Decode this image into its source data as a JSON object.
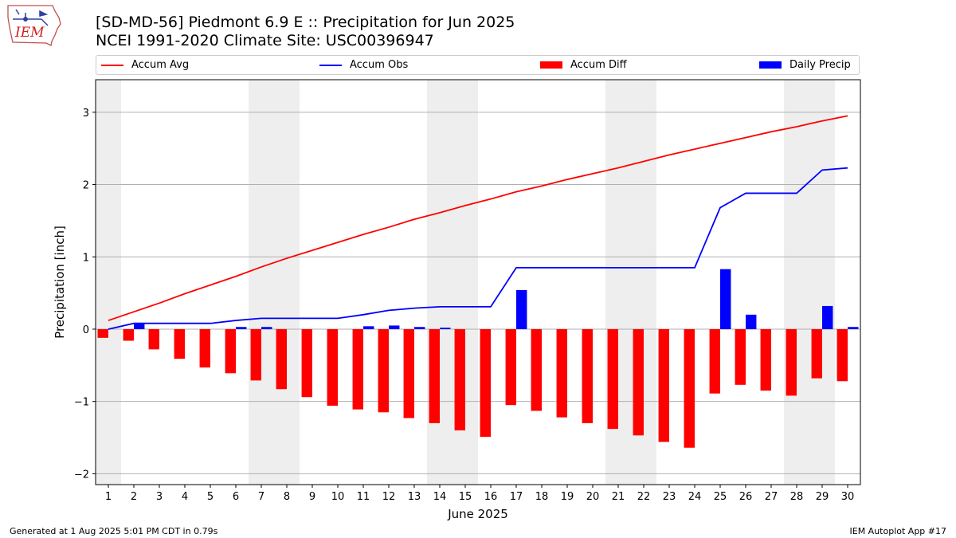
{
  "header": {
    "title_line1": "[SD-MD-56] Piedmont 6.9 E :: Precipitation for Jun 2025",
    "title_line2": "NCEI 1991-2020 Climate Site: USC00396947",
    "logo_text": "IEM"
  },
  "legend": [
    {
      "label": "Accum Avg",
      "kind": "line",
      "color": "#ff0000"
    },
    {
      "label": "Accum Obs",
      "kind": "line",
      "color": "#0000ff"
    },
    {
      "label": "Accum Diff",
      "kind": "box",
      "color": "#ff0000"
    },
    {
      "label": "Daily Precip",
      "kind": "box",
      "color": "#0000ff"
    }
  ],
  "footer": {
    "left": "Generated at 1 Aug 2025 5:01 PM CDT in 0.79s",
    "right": "IEM Autoplot App #17"
  },
  "colors": {
    "avg": "#ff0000",
    "obs": "#0000ff",
    "diff": "#ff0000",
    "daily": "#0000ff",
    "weekend_shade": "#eeeeee",
    "grid": "#b0b0b0"
  },
  "chart_data": {
    "type": "bar",
    "xlabel": "June 2025",
    "ylabel": "Precipitation [inch]",
    "ylim": [
      -2.15,
      3.45
    ],
    "xlim": [
      0.5,
      30.5
    ],
    "yticks": [
      -2,
      -1,
      0,
      1,
      2,
      3
    ],
    "ytick_labels": [
      "−2",
      "−1",
      "0",
      "1",
      "2",
      "3"
    ],
    "grid": "horizontal",
    "legend_position": "top",
    "categories": [
      "1",
      "2",
      "3",
      "4",
      "5",
      "6",
      "7",
      "8",
      "9",
      "10",
      "11",
      "12",
      "13",
      "14",
      "15",
      "16",
      "17",
      "18",
      "19",
      "20",
      "21",
      "22",
      "23",
      "24",
      "25",
      "26",
      "27",
      "28",
      "29",
      "30"
    ],
    "weekend_days": [
      1,
      7,
      8,
      14,
      15,
      21,
      22,
      28,
      29
    ],
    "series": [
      {
        "name": "Accum Avg",
        "type": "line",
        "values": [
          0.12,
          0.24,
          0.36,
          0.49,
          0.61,
          0.73,
          0.86,
          0.98,
          1.09,
          1.2,
          1.31,
          1.41,
          1.52,
          1.61,
          1.71,
          1.8,
          1.9,
          1.98,
          2.07,
          2.15,
          2.23,
          2.32,
          2.41,
          2.49,
          2.57,
          2.65,
          2.73,
          2.8,
          2.88,
          2.95
        ]
      },
      {
        "name": "Accum Obs",
        "type": "line",
        "values": [
          0.0,
          0.08,
          0.08,
          0.08,
          0.08,
          0.12,
          0.15,
          0.15,
          0.15,
          0.15,
          0.2,
          0.26,
          0.29,
          0.31,
          0.31,
          0.31,
          0.85,
          0.85,
          0.85,
          0.85,
          0.85,
          0.85,
          0.85,
          0.85,
          1.68,
          1.88,
          1.88,
          1.88,
          2.2,
          2.23
        ]
      },
      {
        "name": "Accum Diff",
        "type": "bar",
        "values": [
          -0.12,
          -0.16,
          -0.28,
          -0.41,
          -0.53,
          -0.61,
          -0.71,
          -0.83,
          -0.94,
          -1.06,
          -1.11,
          -1.15,
          -1.23,
          -1.3,
          -1.4,
          -1.49,
          -1.05,
          -1.13,
          -1.22,
          -1.3,
          -1.38,
          -1.47,
          -1.56,
          -1.64,
          -0.89,
          -0.77,
          -0.85,
          -0.92,
          -0.68,
          -0.72
        ]
      },
      {
        "name": "Daily Precip",
        "type": "bar",
        "values": [
          0.0,
          0.08,
          0.0,
          0.0,
          0.0,
          0.03,
          0.03,
          0.0,
          0.0,
          0.0,
          0.04,
          0.05,
          0.03,
          0.02,
          0.0,
          0.0,
          0.54,
          0.0,
          0.0,
          0.0,
          0.0,
          0.0,
          0.0,
          0.0,
          0.83,
          0.2,
          0.0,
          0.0,
          0.32,
          0.03
        ]
      }
    ]
  }
}
